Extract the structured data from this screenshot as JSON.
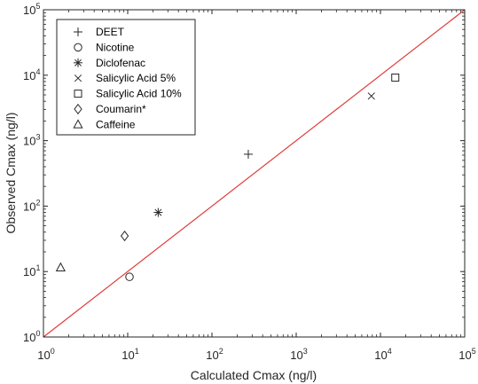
{
  "chart_data": {
    "type": "scatter",
    "xlabel": "Calculated Cmax (ng/l)",
    "ylabel": "Observed Cmax (ng/l)",
    "xscale": "log",
    "yscale": "log",
    "xlim": [
      1,
      100000
    ],
    "ylim": [
      1,
      100000
    ],
    "x_ticks": [
      {
        "base": "10",
        "exp": "0",
        "value": 1
      },
      {
        "base": "10",
        "exp": "1",
        "value": 10
      },
      {
        "base": "10",
        "exp": "2",
        "value": 100
      },
      {
        "base": "10",
        "exp": "3",
        "value": 1000
      },
      {
        "base": "10",
        "exp": "4",
        "value": 10000
      },
      {
        "base": "10",
        "exp": "5",
        "value": 100000
      }
    ],
    "y_ticks": [
      {
        "base": "10",
        "exp": "0",
        "value": 1
      },
      {
        "base": "10",
        "exp": "1",
        "value": 10
      },
      {
        "base": "10",
        "exp": "2",
        "value": 100
      },
      {
        "base": "10",
        "exp": "3",
        "value": 1000
      },
      {
        "base": "10",
        "exp": "4",
        "value": 10000
      },
      {
        "base": "10",
        "exp": "5",
        "value": 100000
      }
    ],
    "grid": false,
    "legend_position": "top-left",
    "reference_line": {
      "type": "identity",
      "from": [
        1,
        1
      ],
      "to": [
        100000,
        100000
      ],
      "color": "#e03c3c"
    },
    "series": [
      {
        "name": "DEET",
        "marker": "plus",
        "points": [
          {
            "x": 270,
            "y": 620
          }
        ]
      },
      {
        "name": "Nicotine",
        "marker": "circle",
        "points": [
          {
            "x": 10.5,
            "y": 8.3
          }
        ]
      },
      {
        "name": "Diclofenac",
        "marker": "asterisk",
        "points": [
          {
            "x": 23,
            "y": 80
          }
        ]
      },
      {
        "name": "Salicylic Acid 5%",
        "marker": "cross",
        "points": [
          {
            "x": 7800,
            "y": 4800
          }
        ]
      },
      {
        "name": "Salicylic Acid 10%",
        "marker": "square",
        "points": [
          {
            "x": 15000,
            "y": 9200
          }
        ]
      },
      {
        "name": "Coumarin*",
        "marker": "diamond",
        "points": [
          {
            "x": 9.2,
            "y": 35
          }
        ]
      },
      {
        "name": "Caffeine",
        "marker": "triangle",
        "points": [
          {
            "x": 1.6,
            "y": 11.5
          }
        ]
      }
    ]
  }
}
